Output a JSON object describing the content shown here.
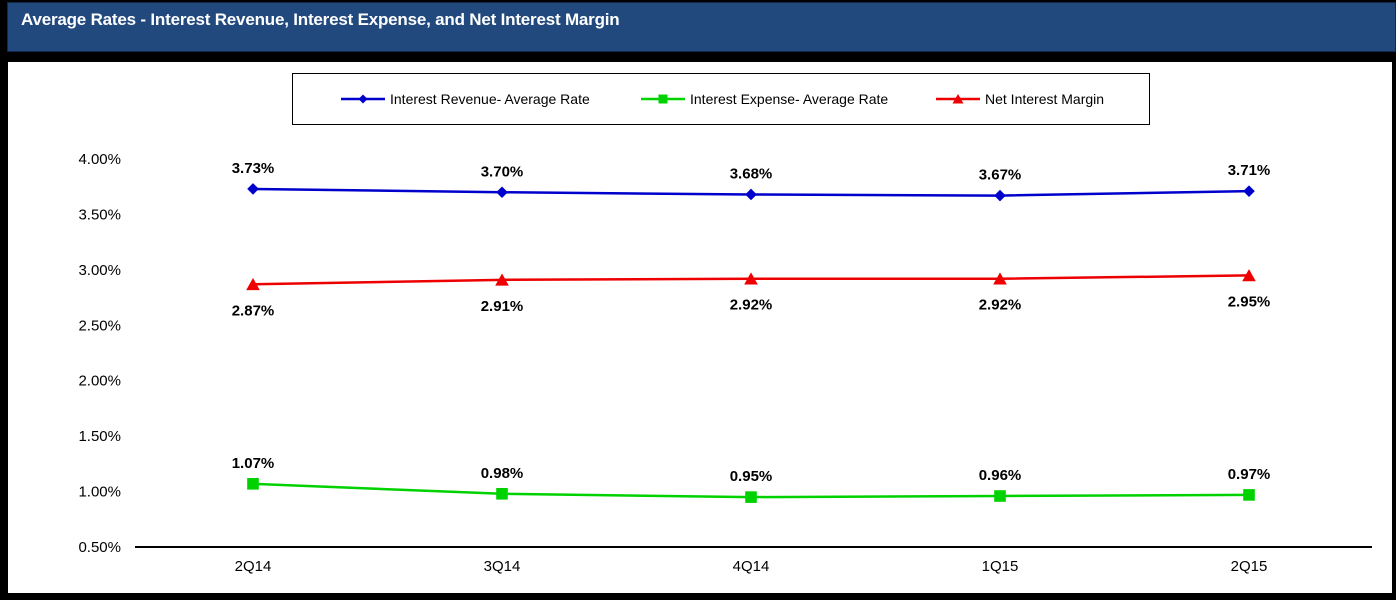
{
  "header": {
    "title": "Average Rates - Interest Revenue, Interest Expense, and Net Interest Margin"
  },
  "colors": {
    "title_bar": "#21497D",
    "title_text": "#FFFFFF",
    "frame": "#000000",
    "plot_background": "#FFFFFF",
    "axis_line": "#000000",
    "series_blue": "#0000CC",
    "series_green": "#00D200",
    "series_red": "#EE0000"
  },
  "chart_data": {
    "type": "line",
    "title": "Average Rates - Interest Revenue, Interest Expense, and Net Interest Margin",
    "categories": [
      "2Q14",
      "3Q14",
      "4Q14",
      "1Q15",
      "2Q15"
    ],
    "series": [
      {
        "name": "Interest Revenue- Average Rate",
        "color": "#0000CC",
        "marker": "diamond",
        "values": [
          3.73,
          3.7,
          3.68,
          3.67,
          3.71
        ],
        "labels": [
          "3.73%",
          "3.70%",
          "3.68%",
          "3.67%",
          "3.71%"
        ],
        "label_position": "above"
      },
      {
        "name": "Interest Expense- Average Rate",
        "color": "#00D200",
        "marker": "square",
        "values": [
          1.07,
          0.98,
          0.95,
          0.96,
          0.97
        ],
        "labels": [
          "1.07%",
          "0.98%",
          "0.95%",
          "0.96%",
          "0.97%"
        ],
        "label_position": "above"
      },
      {
        "name": "Net Interest Margin",
        "color": "#EE0000",
        "marker": "triangle",
        "values": [
          2.87,
          2.91,
          2.92,
          2.92,
          2.95
        ],
        "labels": [
          "2.87%",
          "2.91%",
          "2.92%",
          "2.92%",
          "2.95%"
        ],
        "label_position": "below"
      }
    ],
    "y_axis": {
      "min": 0.5,
      "max": 4.0,
      "tick_step": 0.5,
      "tick_labels": [
        "4.00%",
        "3.50%",
        "3.00%",
        "2.50%",
        "2.00%",
        "1.50%",
        "1.00%",
        "0.50%"
      ]
    },
    "grid": false,
    "legend_position": "top"
  }
}
